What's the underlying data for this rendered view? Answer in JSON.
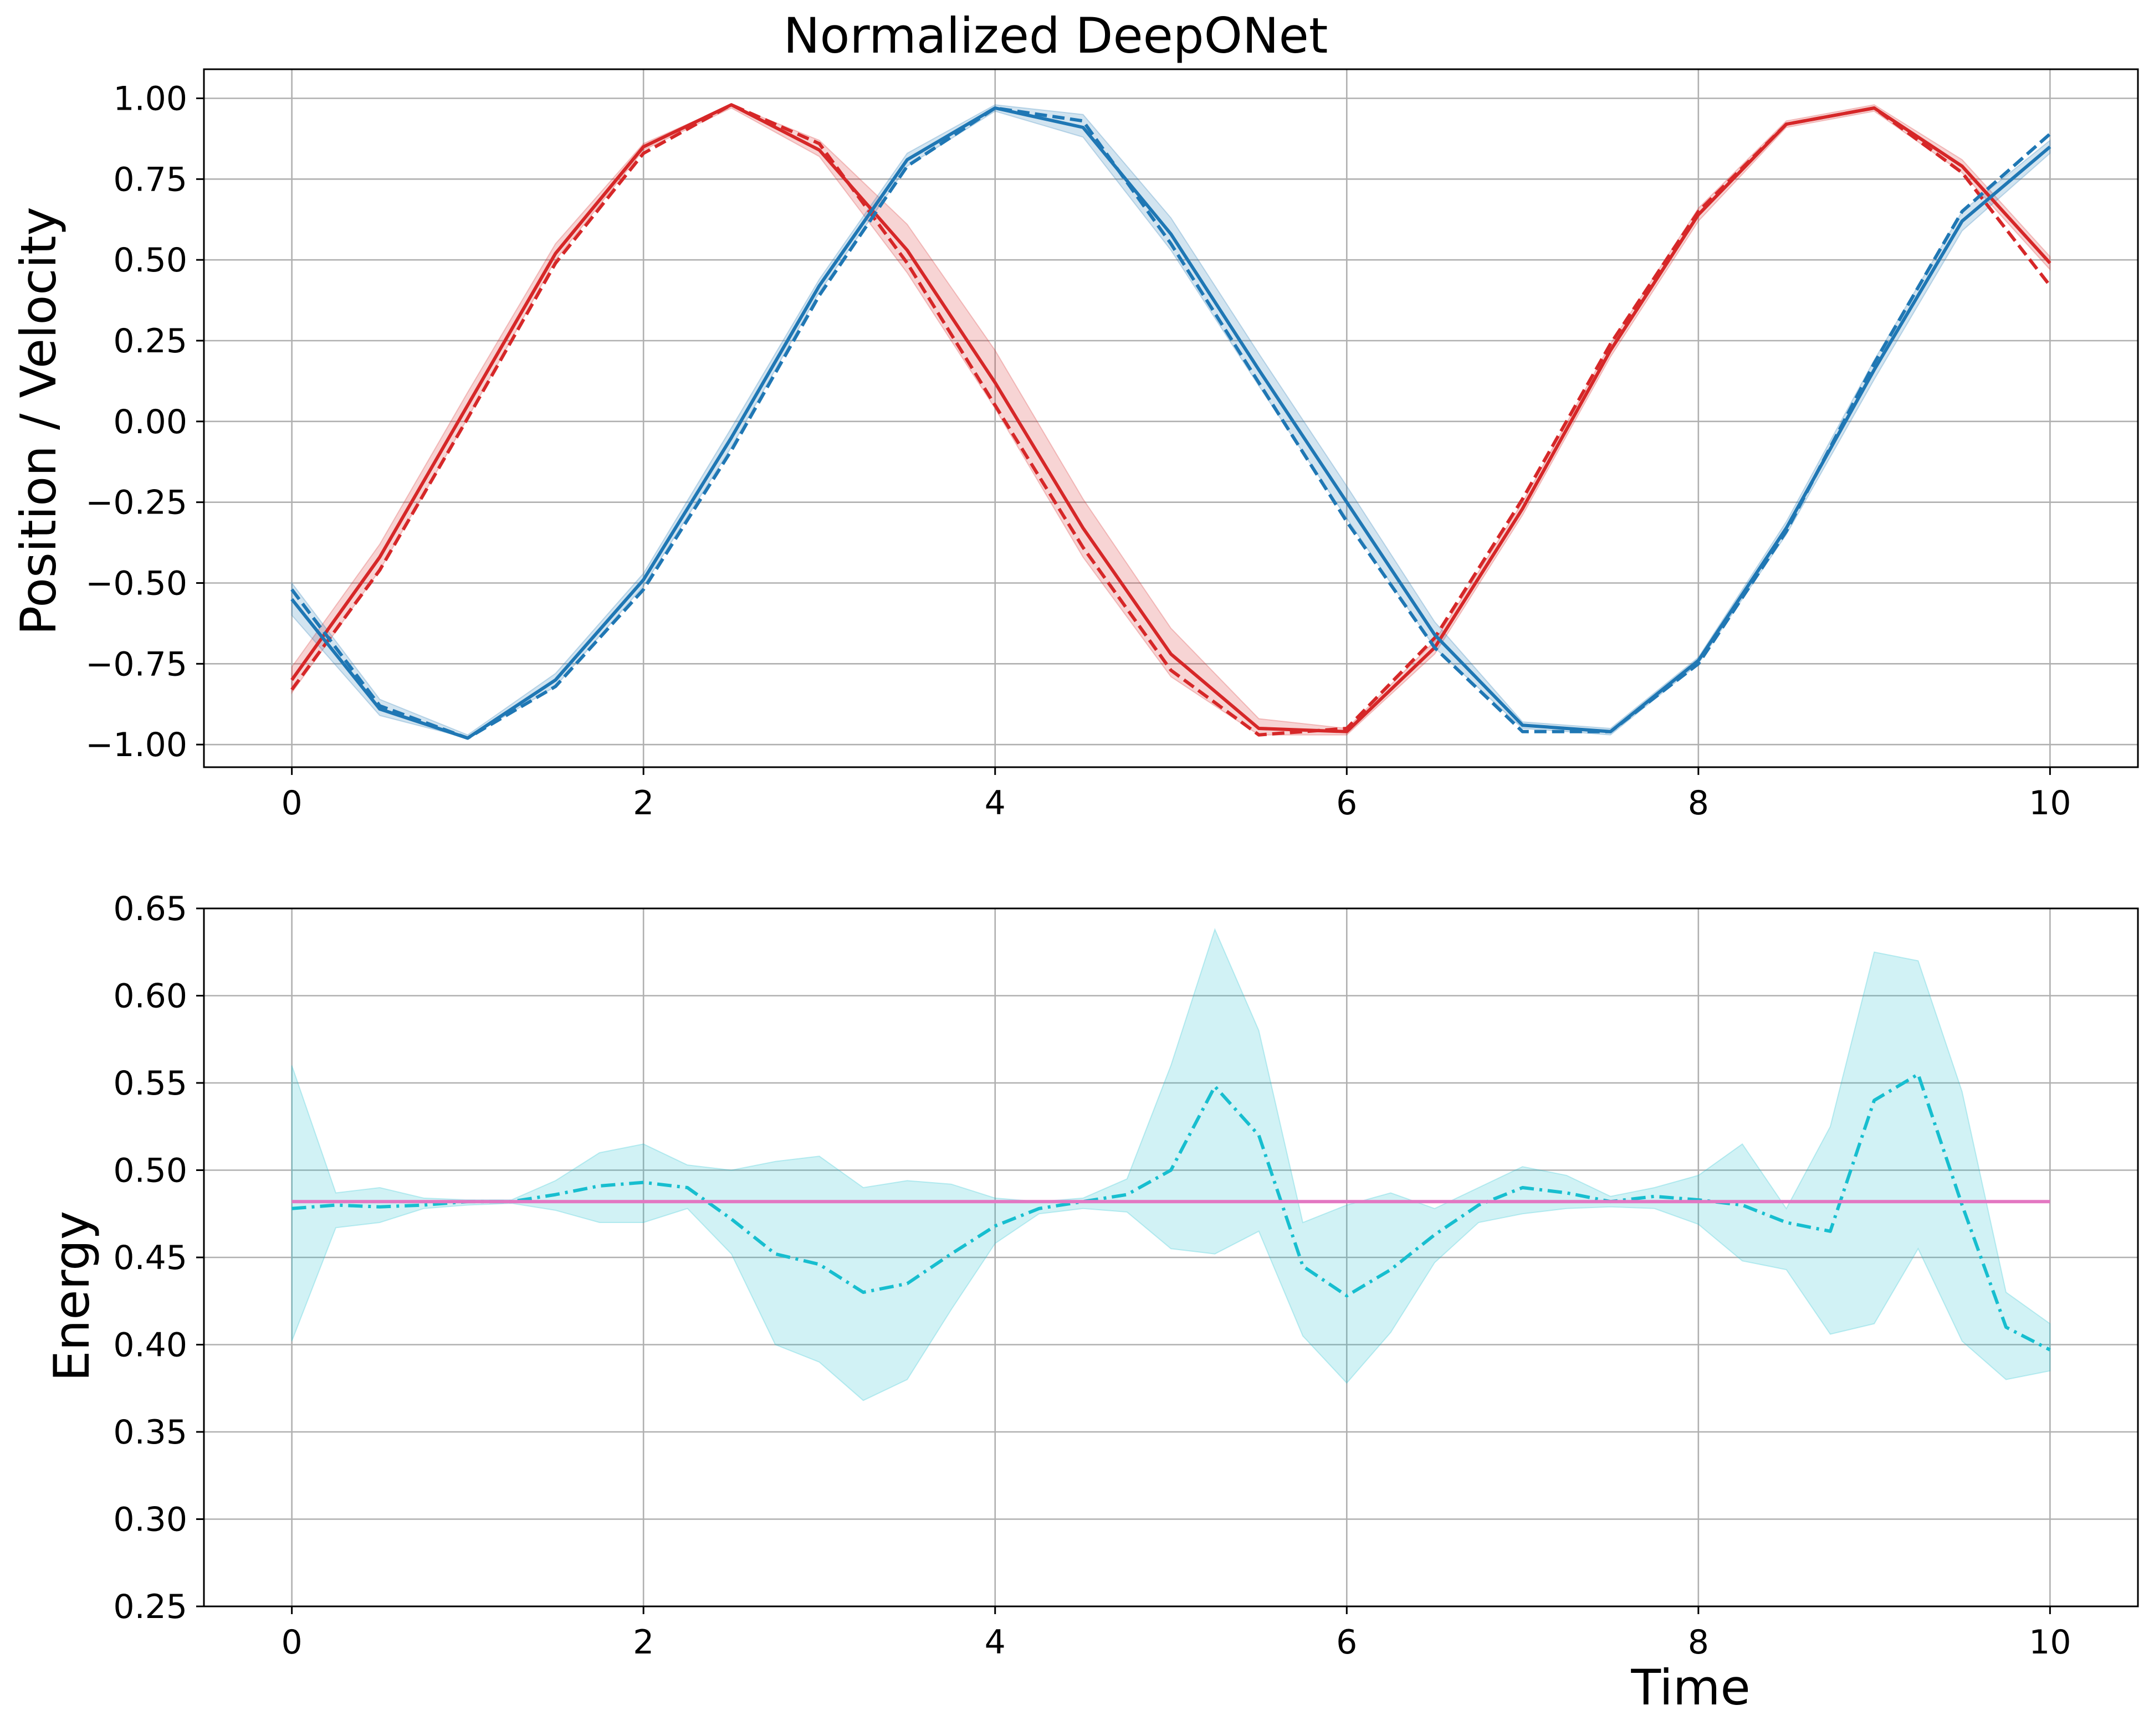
{
  "chart_data": [
    {
      "type": "line",
      "title": "Normalized DeepONet",
      "xlabel": "",
      "ylabel": "Position / Velocity",
      "xlim": [
        -0.5,
        10.5
      ],
      "ylim": [
        -1.07,
        1.09
      ],
      "grid": true,
      "x_ticks": [
        0,
        2,
        4,
        6,
        8,
        10
      ],
      "x_tick_labels": [
        "0",
        "2",
        "4",
        "6",
        "8",
        "10"
      ],
      "y_ticks": [
        -1.0,
        -0.75,
        -0.5,
        -0.25,
        0.0,
        0.25,
        0.5,
        0.75,
        1.0
      ],
      "y_tick_labels": [
        "−1.00",
        "−0.75",
        "−0.50",
        "−0.25",
        "0.00",
        "0.25",
        "0.50",
        "0.75",
        "1.00"
      ],
      "x": [
        0,
        0.5,
        1,
        1.5,
        2,
        2.5,
        3,
        3.5,
        4,
        4.5,
        5,
        5.5,
        6,
        6.5,
        7,
        7.5,
        8,
        8.5,
        9,
        9.5,
        10
      ],
      "series": [
        {
          "color": "#d62728",
          "style": "solid",
          "values": [
            -0.8,
            -0.42,
            0.05,
            0.52,
            0.85,
            0.98,
            0.84,
            0.53,
            0.12,
            -0.33,
            -0.72,
            -0.95,
            -0.96,
            -0.7,
            -0.27,
            0.22,
            0.64,
            0.92,
            0.97,
            0.79,
            0.49
          ]
        },
        {
          "color": "#d62728",
          "style": "dashed",
          "values": [
            -0.83,
            -0.46,
            0.01,
            0.49,
            0.83,
            0.98,
            0.86,
            0.49,
            0.05,
            -0.39,
            -0.77,
            -0.97,
            -0.95,
            -0.67,
            -0.24,
            0.24,
            0.65,
            0.92,
            0.97,
            0.77,
            0.42
          ]
        },
        {
          "color": "#1f77b4",
          "style": "solid",
          "values": [
            -0.55,
            -0.89,
            -0.98,
            -0.8,
            -0.49,
            -0.05,
            0.42,
            0.81,
            0.97,
            0.91,
            0.58,
            0.16,
            -0.25,
            -0.66,
            -0.94,
            -0.96,
            -0.74,
            -0.33,
            0.16,
            0.62,
            0.85
          ]
        },
        {
          "color": "#1f77b4",
          "style": "dashed",
          "values": [
            -0.52,
            -0.88,
            -0.98,
            -0.82,
            -0.52,
            -0.09,
            0.39,
            0.79,
            0.97,
            0.93,
            0.55,
            0.12,
            -0.31,
            -0.7,
            -0.96,
            -0.96,
            -0.75,
            -0.34,
            0.18,
            0.65,
            0.89
          ]
        }
      ],
      "bands": [
        {
          "color": "#d62728",
          "lower": [
            -0.84,
            -0.46,
            0.01,
            0.5,
            0.84,
            0.97,
            0.82,
            0.46,
            0.04,
            -0.42,
            -0.79,
            -0.97,
            -0.97,
            -0.72,
            -0.29,
            0.2,
            0.62,
            0.91,
            0.96,
            0.77,
            0.47
          ],
          "upper": [
            -0.76,
            -0.38,
            0.09,
            0.55,
            0.86,
            0.98,
            0.87,
            0.61,
            0.22,
            -0.24,
            -0.64,
            -0.92,
            -0.95,
            -0.68,
            -0.25,
            0.24,
            0.66,
            0.93,
            0.98,
            0.81,
            0.51
          ]
        },
        {
          "color": "#1f77b4",
          "lower": [
            -0.6,
            -0.91,
            -0.98,
            -0.82,
            -0.51,
            -0.08,
            0.4,
            0.79,
            0.96,
            0.88,
            0.53,
            0.11,
            -0.3,
            -0.7,
            -0.95,
            -0.97,
            -0.75,
            -0.35,
            0.13,
            0.59,
            0.83
          ],
          "upper": [
            -0.5,
            -0.86,
            -0.97,
            -0.78,
            -0.47,
            -0.02,
            0.44,
            0.83,
            0.98,
            0.95,
            0.63,
            0.21,
            -0.2,
            -0.62,
            -0.93,
            -0.95,
            -0.73,
            -0.31,
            0.19,
            0.65,
            0.87
          ]
        }
      ]
    },
    {
      "type": "line",
      "title": "",
      "xlabel": "Time",
      "ylabel": "Energy",
      "xlim": [
        -0.5,
        10.5
      ],
      "ylim": [
        0.25,
        0.65
      ],
      "grid": true,
      "x_ticks": [
        0,
        2,
        4,
        6,
        8,
        10
      ],
      "x_tick_labels": [
        "0",
        "2",
        "4",
        "6",
        "8",
        "10"
      ],
      "y_ticks": [
        0.25,
        0.3,
        0.35,
        0.4,
        0.45,
        0.5,
        0.55,
        0.6,
        0.65
      ],
      "y_tick_labels": [
        "0.25",
        "0.30",
        "0.35",
        "0.40",
        "0.45",
        "0.50",
        "0.55",
        "0.60",
        "0.65"
      ],
      "x": [
        0,
        0.25,
        0.5,
        0.75,
        1,
        1.25,
        1.5,
        1.75,
        2,
        2.25,
        2.5,
        2.75,
        3,
        3.25,
        3.5,
        3.75,
        4,
        4.25,
        4.5,
        4.75,
        5,
        5.25,
        5.5,
        5.75,
        6,
        6.25,
        6.5,
        6.75,
        7,
        7.25,
        7.5,
        7.75,
        8,
        8.25,
        8.5,
        8.75,
        9,
        9.25,
        9.5,
        9.75,
        10
      ],
      "series": [
        {
          "color": "#17becf",
          "style": "dashdot",
          "values": [
            0.478,
            0.48,
            0.479,
            0.48,
            0.482,
            0.482,
            0.486,
            0.491,
            0.493,
            0.49,
            0.472,
            0.452,
            0.446,
            0.43,
            0.435,
            0.452,
            0.468,
            0.478,
            0.482,
            0.486,
            0.5,
            0.548,
            0.52,
            0.445,
            0.428,
            0.443,
            0.463,
            0.48,
            0.49,
            0.487,
            0.482,
            0.485,
            0.483,
            0.48,
            0.47,
            0.465,
            0.54,
            0.555,
            0.48,
            0.41,
            0.397
          ]
        },
        {
          "color": "#e377c2",
          "style": "solid",
          "values": [
            0.482,
            0.482,
            0.482,
            0.482,
            0.482,
            0.482,
            0.482,
            0.482,
            0.482,
            0.482,
            0.482,
            0.482,
            0.482,
            0.482,
            0.482,
            0.482,
            0.482,
            0.482,
            0.482,
            0.482,
            0.482,
            0.482,
            0.482,
            0.482,
            0.482,
            0.482,
            0.482,
            0.482,
            0.482,
            0.482,
            0.482,
            0.482,
            0.482,
            0.482,
            0.482,
            0.482,
            0.482,
            0.482,
            0.482,
            0.482,
            0.482
          ]
        }
      ],
      "bands": [
        {
          "color": "#17becf",
          "lower": [
            0.402,
            0.467,
            0.47,
            0.478,
            0.48,
            0.481,
            0.477,
            0.47,
            0.47,
            0.478,
            0.452,
            0.4,
            0.39,
            0.368,
            0.38,
            0.42,
            0.458,
            0.475,
            0.478,
            0.476,
            0.455,
            0.452,
            0.465,
            0.405,
            0.378,
            0.407,
            0.447,
            0.47,
            0.475,
            0.478,
            0.479,
            0.478,
            0.469,
            0.448,
            0.443,
            0.406,
            0.412,
            0.455,
            0.402,
            0.38,
            0.385
          ]
        },
        {
          "color": "#17becf",
          "upper": [
            0.56,
            0.487,
            0.49,
            0.484,
            0.483,
            0.483,
            0.494,
            0.51,
            0.515,
            0.503,
            0.5,
            0.505,
            0.508,
            0.49,
            0.494,
            0.492,
            0.484,
            0.482,
            0.484,
            0.495,
            0.56,
            0.638,
            0.58,
            0.47,
            0.48,
            0.487,
            0.478,
            0.49,
            0.502,
            0.497,
            0.485,
            0.49,
            0.497,
            0.515,
            0.478,
            0.525,
            0.625,
            0.62,
            0.545,
            0.43,
            0.412
          ]
        }
      ]
    }
  ]
}
